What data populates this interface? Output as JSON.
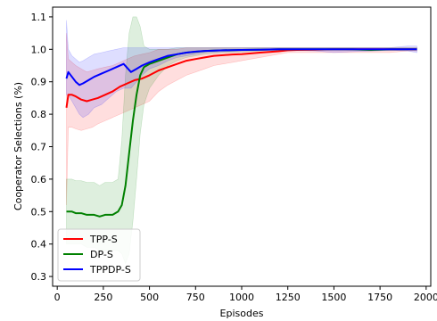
{
  "chart_data": {
    "type": "line",
    "title": "",
    "xlabel": "Episodes",
    "ylabel": "Cooperator Selections (%)",
    "xlim": [
      -25,
      2025
    ],
    "ylim": [
      0.27,
      1.13
    ],
    "xticks": [
      0,
      250,
      500,
      750,
      1000,
      1250,
      1500,
      1750,
      2000
    ],
    "xtick_labels": [
      "0",
      "250",
      "500",
      "750",
      "1000",
      "1250",
      "1500",
      "1750",
      "2000"
    ],
    "yticks": [
      0.3,
      0.4,
      0.5,
      0.6,
      0.7,
      0.8,
      0.9,
      1.0,
      1.1
    ],
    "ytick_labels": [
      "0.3",
      "0.4",
      "0.5",
      "0.6",
      "0.7",
      "0.8",
      "0.9",
      "1.0",
      "1.1"
    ],
    "grid": false,
    "legend_position": "lower-left",
    "series": [
      {
        "name": "TPP-S",
        "color": "#ff0000",
        "x": [
          50,
          60,
          80,
          100,
          130,
          160,
          190,
          220,
          260,
          300,
          340,
          380,
          420,
          460,
          500,
          550,
          600,
          650,
          700,
          750,
          800,
          850,
          900,
          950,
          1000,
          1100,
          1200,
          1250,
          1300,
          1400,
          1500,
          1600,
          1700,
          1800,
          1900,
          1950
        ],
        "y": [
          0.82,
          0.86,
          0.86,
          0.855,
          0.845,
          0.84,
          0.845,
          0.85,
          0.86,
          0.87,
          0.885,
          0.895,
          0.905,
          0.91,
          0.92,
          0.935,
          0.945,
          0.955,
          0.965,
          0.97,
          0.975,
          0.98,
          0.982,
          0.984,
          0.985,
          0.99,
          0.994,
          0.997,
          0.998,
          0.999,
          1.0,
          1.0,
          1.0,
          1.0,
          1.0,
          1.0
        ],
        "lower": [
          0.52,
          0.76,
          0.76,
          0.755,
          0.75,
          0.755,
          0.76,
          0.77,
          0.78,
          0.79,
          0.8,
          0.81,
          0.82,
          0.83,
          0.84,
          0.87,
          0.89,
          0.905,
          0.92,
          0.93,
          0.94,
          0.95,
          0.955,
          0.96,
          0.965,
          0.975,
          0.985,
          0.99,
          0.99,
          0.99,
          0.99,
          0.99,
          0.99,
          0.99,
          0.995,
          0.995
        ],
        "upper": [
          1.05,
          0.97,
          0.96,
          0.95,
          0.94,
          0.93,
          0.935,
          0.94,
          0.945,
          0.95,
          0.96,
          0.97,
          0.98,
          0.985,
          0.99,
          1.0,
          1.0,
          1.0,
          1.005,
          1.005,
          1.005,
          1.005,
          1.005,
          1.005,
          1.005,
          1.005,
          1.005,
          1.005,
          1.005,
          1.005,
          1.005,
          1.005,
          1.005,
          1.005,
          1.005,
          1.005
        ]
      },
      {
        "name": "DP-S",
        "color": "#008000",
        "x": [
          50,
          80,
          100,
          130,
          160,
          200,
          230,
          260,
          300,
          330,
          350,
          370,
          390,
          410,
          430,
          450,
          470,
          500,
          550,
          600,
          650,
          700,
          800,
          900,
          1000,
          1100,
          1200,
          1300,
          1400,
          1500,
          1600,
          1700,
          1800,
          1900,
          1950
        ],
        "y": [
          0.5,
          0.5,
          0.495,
          0.495,
          0.49,
          0.49,
          0.485,
          0.49,
          0.49,
          0.5,
          0.52,
          0.58,
          0.68,
          0.78,
          0.86,
          0.92,
          0.945,
          0.955,
          0.965,
          0.975,
          0.985,
          0.99,
          0.995,
          0.997,
          0.998,
          0.999,
          1.0,
          1.0,
          1.0,
          1.0,
          1.0,
          0.998,
          1.0,
          1.0,
          1.0
        ],
        "lower": [
          0.4,
          0.4,
          0.4,
          0.4,
          0.39,
          0.39,
          0.38,
          0.38,
          0.38,
          0.38,
          0.37,
          0.34,
          0.37,
          0.47,
          0.6,
          0.74,
          0.83,
          0.88,
          0.92,
          0.95,
          0.965,
          0.975,
          0.985,
          0.99,
          0.992,
          0.995,
          0.997,
          0.998,
          0.998,
          0.998,
          0.997,
          0.995,
          0.997,
          0.998,
          0.998
        ],
        "upper": [
          0.6,
          0.6,
          0.595,
          0.595,
          0.59,
          0.59,
          0.58,
          0.59,
          0.59,
          0.6,
          0.72,
          0.92,
          1.05,
          1.1,
          1.1,
          1.07,
          1.01,
          1.0,
          1.0,
          1.0,
          1.005,
          1.005,
          1.005,
          1.005,
          1.005,
          1.005,
          1.005,
          1.005,
          1.005,
          1.005,
          1.005,
          1.005,
          1.005,
          1.005,
          1.005
        ]
      },
      {
        "name": "TPPDP-S",
        "color": "#0000ff",
        "x": [
          50,
          60,
          80,
          100,
          120,
          140,
          170,
          200,
          240,
          280,
          320,
          360,
          400,
          430,
          460,
          500,
          550,
          600,
          650,
          700,
          750,
          800,
          900,
          1000,
          1100,
          1200,
          1300,
          1400,
          1500,
          1600,
          1700,
          1800,
          1900,
          1950
        ],
        "y": [
          0.91,
          0.93,
          0.915,
          0.9,
          0.89,
          0.895,
          0.905,
          0.915,
          0.925,
          0.935,
          0.945,
          0.955,
          0.93,
          0.94,
          0.95,
          0.96,
          0.97,
          0.98,
          0.985,
          0.99,
          0.993,
          0.995,
          0.997,
          0.998,
          0.999,
          1.0,
          1.0,
          1.0,
          1.0,
          1.0,
          1.0,
          1.0,
          1.0,
          1.0
        ],
        "lower": [
          0.86,
          0.86,
          0.84,
          0.82,
          0.8,
          0.79,
          0.8,
          0.82,
          0.83,
          0.85,
          0.87,
          0.88,
          0.88,
          0.9,
          0.92,
          0.94,
          0.95,
          0.965,
          0.975,
          0.98,
          0.985,
          0.99,
          0.993,
          0.995,
          0.997,
          0.997,
          0.997,
          0.995,
          0.99,
          0.993,
          0.995,
          0.997,
          0.995,
          0.99
        ],
        "upper": [
          1.09,
          1.0,
          0.98,
          0.97,
          0.96,
          0.965,
          0.975,
          0.985,
          0.99,
          0.995,
          1.0,
          1.005,
          1.005,
          1.005,
          1.005,
          1.005,
          1.005,
          1.005,
          1.005,
          1.005,
          1.005,
          1.005,
          1.005,
          1.005,
          1.005,
          1.005,
          1.005,
          1.005,
          1.005,
          1.005,
          1.005,
          1.005,
          1.01,
          1.01
        ]
      }
    ]
  }
}
